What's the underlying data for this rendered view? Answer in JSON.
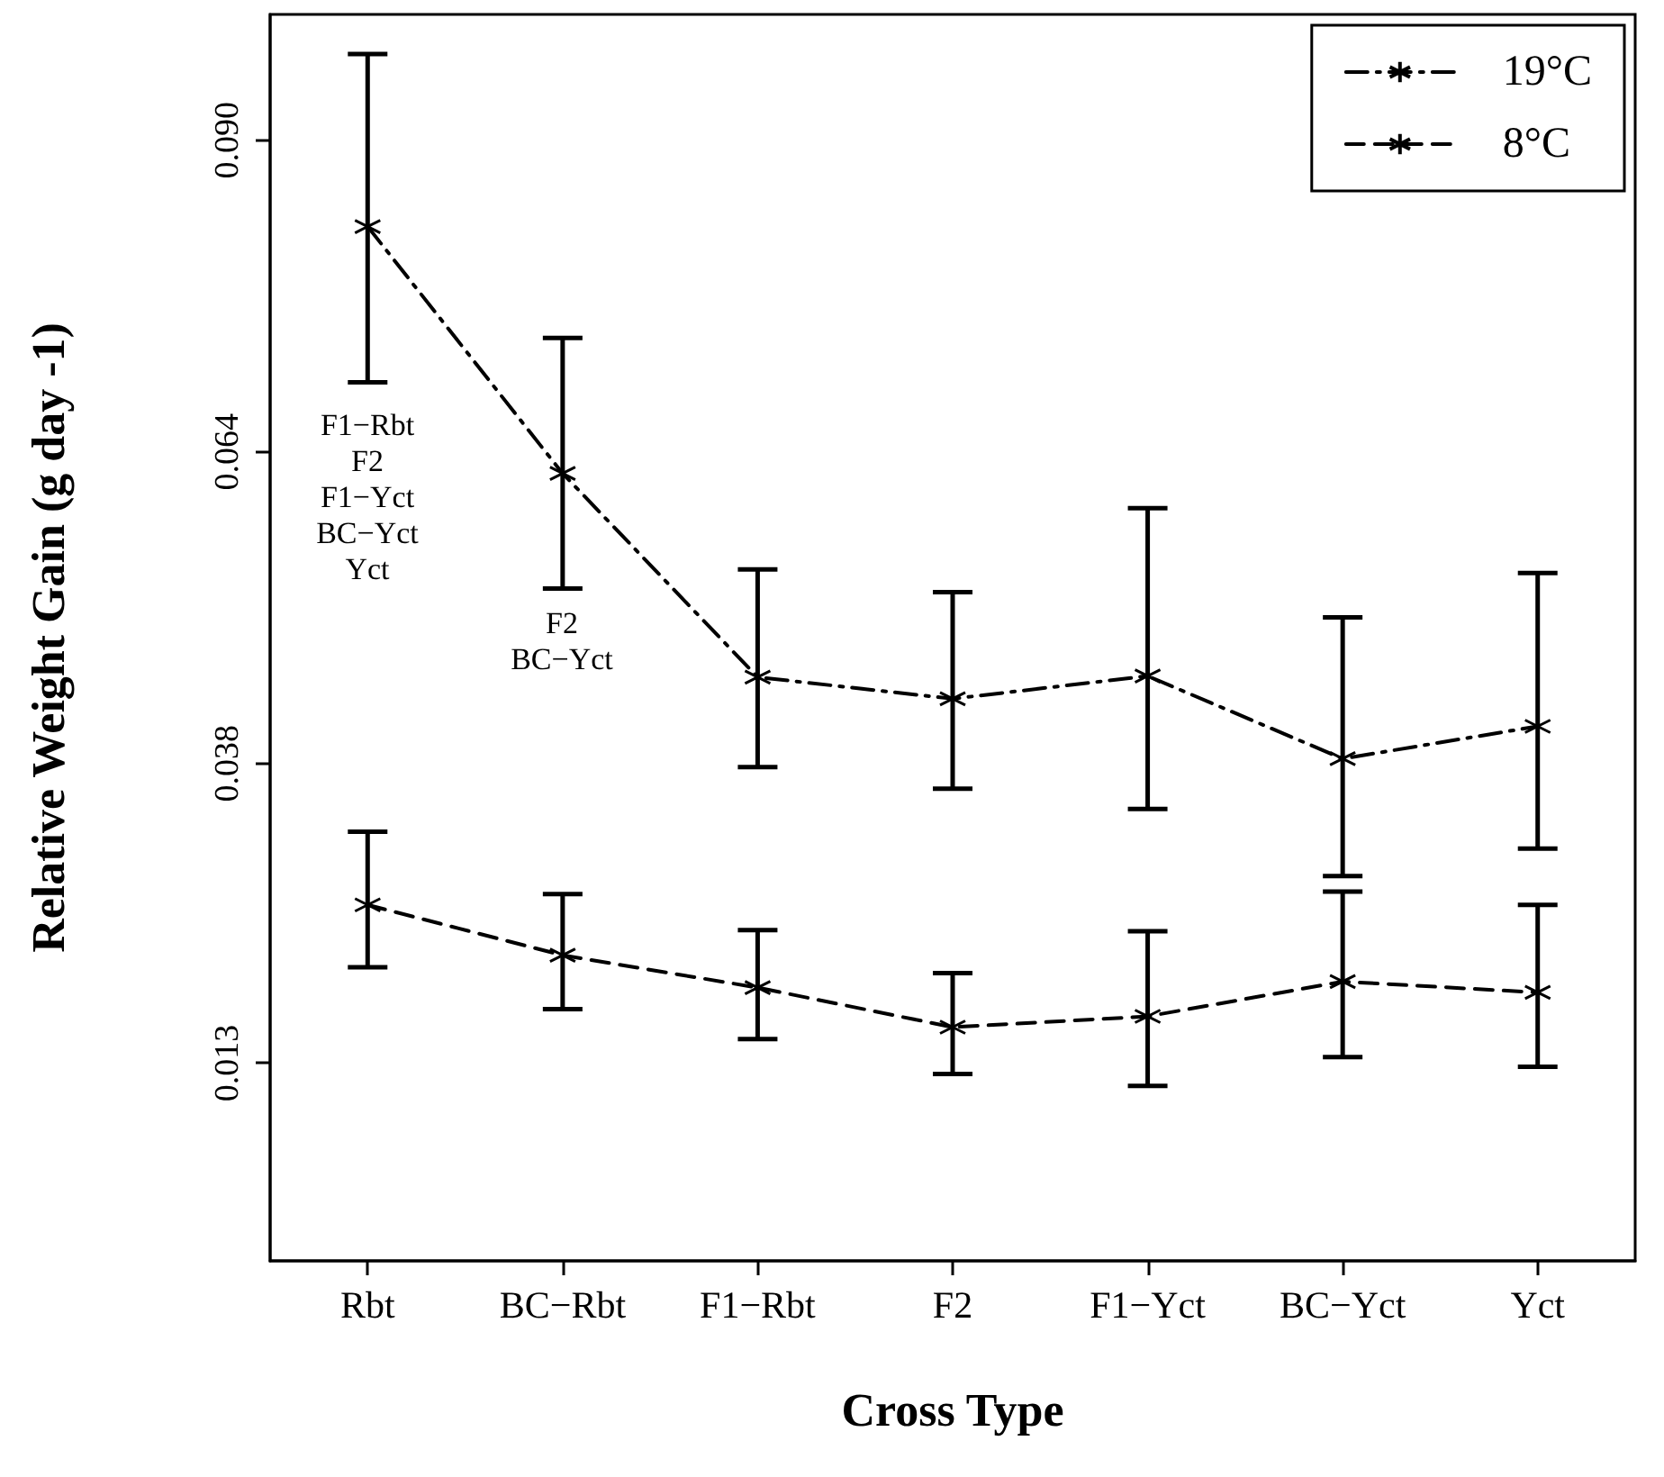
{
  "chart_data": {
    "type": "line",
    "xlabel": "Cross Type",
    "ylabel": "Relative Weight Gain (g day -1)",
    "categories": [
      "Rbt",
      "BC−Rbt",
      "F1−Rbt",
      "F2",
      "F1−Yct",
      "BC−Yct",
      "Yct"
    ],
    "series": [
      {
        "name": "19°C",
        "color": "#000000",
        "line_style": "dashdot",
        "values": [
          0.0828,
          0.0622,
          0.0452,
          0.0434,
          0.0453,
          0.0384,
          0.0411
        ],
        "errors": [
          [
            0.0698,
            0.0972
          ],
          [
            0.0526,
            0.0735
          ],
          [
            0.0377,
            0.0542
          ],
          [
            0.0359,
            0.0523
          ],
          [
            0.0342,
            0.0593
          ],
          [
            0.0286,
            0.0502
          ],
          [
            0.0309,
            0.0539
          ]
        ]
      },
      {
        "name": "8°C",
        "color": "#000000",
        "line_style": "dashed",
        "values": [
          0.0262,
          0.022,
          0.0193,
          0.016,
          0.0169,
          0.0198,
          0.0189
        ],
        "errors": [
          [
            0.021,
            0.0323
          ],
          [
            0.0175,
            0.0271
          ],
          [
            0.015,
            0.0241
          ],
          [
            0.0121,
            0.0205
          ],
          [
            0.0111,
            0.024
          ],
          [
            0.0135,
            0.0273
          ],
          [
            0.0127,
            0.0262
          ]
        ]
      }
    ],
    "ylim": [
      -0.0035,
      0.1005
    ],
    "yticks": [
      0.013,
      0.038,
      0.064,
      {
        "value": 0.09,
        "label": "0.090"
      }
    ],
    "grid": false,
    "legend": "top right",
    "marker": "cross",
    "annotations": [
      "F1−Rbt\nF2\nF1−Yct\nBC−Yct\nYct",
      "F2\nBC−Yct"
    ]
  }
}
